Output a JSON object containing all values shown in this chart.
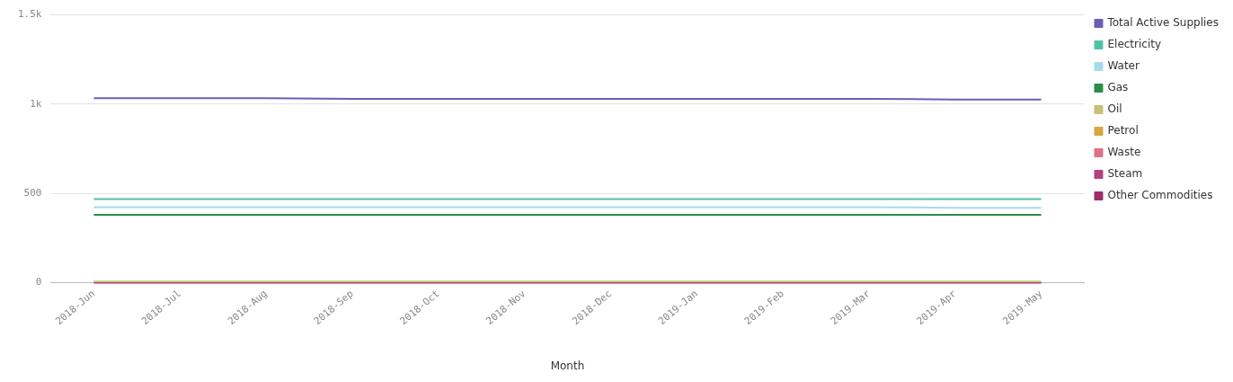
{
  "chart_data": {
    "type": "line",
    "xlabel": "Month",
    "categories": [
      "2018-Jun",
      "2018-Jul",
      "2018-Aug",
      "2018-Sep",
      "2018-Oct",
      "2018-Nov",
      "2018-Dec",
      "2019-Jan",
      "2019-Feb",
      "2019-Mar",
      "2019-Apr",
      "2019-May"
    ],
    "series": [
      {
        "name": "Total Active Supplies",
        "color": "#6b5fb3",
        "values": [
          1033,
          1033,
          1033,
          1030,
          1030,
          1030,
          1030,
          1030,
          1030,
          1030,
          1026,
          1026
        ]
      },
      {
        "name": "Electricity",
        "color": "#4ec2a6",
        "values": [
          468,
          468,
          468,
          468,
          468,
          468,
          468,
          468,
          468,
          468,
          468,
          468
        ]
      },
      {
        "name": "Water",
        "color": "#a9d8f0",
        "values": [
          423,
          423,
          423,
          423,
          423,
          423,
          423,
          423,
          423,
          423,
          419,
          419
        ]
      },
      {
        "name": "Gas",
        "color": "#2e8b4a",
        "values": [
          380,
          380,
          380,
          380,
          380,
          380,
          380,
          380,
          380,
          380,
          380,
          380
        ]
      },
      {
        "name": "Oil",
        "color": "#c8c07a",
        "values": [
          6,
          6,
          6,
          6,
          6,
          6,
          6,
          6,
          6,
          6,
          6,
          6
        ]
      },
      {
        "name": "Petrol",
        "color": "#d9a441",
        "values": [
          null,
          null,
          null,
          null,
          null,
          null,
          null,
          null,
          null,
          null,
          null,
          null
        ]
      },
      {
        "name": "Waste",
        "color": "#e0708a",
        "values": [
          null,
          null,
          null,
          null,
          null,
          null,
          null,
          null,
          null,
          null,
          null,
          null
        ]
      },
      {
        "name": "Steam",
        "color": "#b0427f",
        "values": [
          null,
          null,
          null,
          null,
          null,
          null,
          null,
          null,
          null,
          null,
          null,
          null
        ]
      },
      {
        "name": "Other Commodities",
        "color": "#9c2f6a",
        "values": [
          0,
          0,
          0,
          0,
          0,
          0,
          0,
          0,
          0,
          0,
          0,
          0
        ]
      }
    ],
    "ylim": [
      0,
      1500
    ],
    "yticks": [
      0,
      500,
      {
        "value": 1000,
        "label": "1k"
      },
      {
        "value": 1500,
        "label": "1.5k"
      }
    ],
    "grid": "y",
    "legend": "right",
    "marker": "none",
    "line_style": "solid"
  }
}
